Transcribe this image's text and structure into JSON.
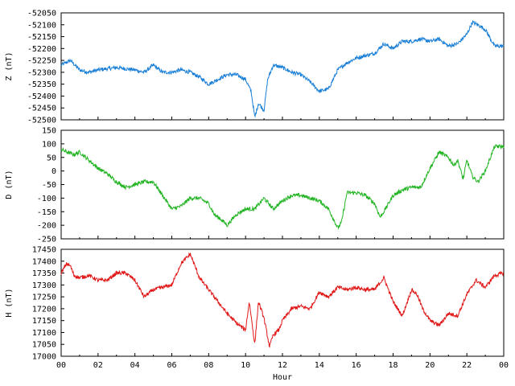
{
  "chart_data": [
    {
      "type": "line",
      "ylabel": "Z (nT)",
      "ylim": [
        -52500,
        -52050
      ],
      "yticks": [
        -52050,
        -52100,
        -52150,
        -52200,
        -52250,
        -52300,
        -52350,
        -52400,
        -52450,
        -52500
      ],
      "color": "#1a7fd6",
      "x": [
        0,
        0.5,
        1,
        1.5,
        2,
        2.5,
        3,
        3.5,
        4,
        4.5,
        5,
        5.5,
        6,
        6.5,
        7,
        7.5,
        8,
        8.5,
        9,
        9.5,
        10,
        10.3,
        10.5,
        10.7,
        11,
        11.2,
        11.5,
        12,
        12.5,
        13,
        13.5,
        14,
        14.5,
        15,
        15.5,
        16,
        16.5,
        17,
        17.5,
        18,
        18.5,
        19,
        19.5,
        20,
        20.5,
        21,
        21.5,
        22,
        22.3,
        22.6,
        23,
        23.5,
        24
      ],
      "y": [
        -52270,
        -52250,
        -52290,
        -52300,
        -52290,
        -52285,
        -52280,
        -52285,
        -52290,
        -52300,
        -52270,
        -52300,
        -52300,
        -52290,
        -52300,
        -52320,
        -52350,
        -52330,
        -52310,
        -52310,
        -52330,
        -52380,
        -52490,
        -52430,
        -52460,
        -52330,
        -52270,
        -52280,
        -52300,
        -52310,
        -52340,
        -52380,
        -52370,
        -52290,
        -52260,
        -52240,
        -52230,
        -52220,
        -52180,
        -52200,
        -52170,
        -52170,
        -52160,
        -52170,
        -52160,
        -52190,
        -52180,
        -52140,
        -52090,
        -52100,
        -52120,
        -52190,
        -52190
      ]
    },
    {
      "type": "line",
      "ylabel": "D (nT)",
      "ylim": [
        -250,
        150
      ],
      "yticks": [
        150,
        100,
        50,
        0,
        -50,
        -100,
        -150,
        -200,
        -250
      ],
      "color": "#22b422",
      "x": [
        0,
        0.3,
        0.7,
        1,
        1.5,
        2,
        2.5,
        3,
        3.5,
        4,
        4.5,
        5,
        5.5,
        6,
        6.5,
        7,
        7.5,
        8,
        8.3,
        8.7,
        9,
        9.5,
        10,
        10.5,
        11,
        11.5,
        12,
        12.5,
        13,
        13.5,
        14,
        14.5,
        15,
        15.2,
        15.5,
        16,
        16.5,
        17,
        17.3,
        17.5,
        18,
        18.5,
        19,
        19.5,
        20,
        20.5,
        21,
        21.3,
        21.5,
        21.8,
        22,
        22.3,
        22.6,
        23,
        23.5,
        24
      ],
      "y": [
        80,
        70,
        60,
        70,
        40,
        10,
        -10,
        -40,
        -60,
        -50,
        -40,
        -40,
        -90,
        -140,
        -130,
        -100,
        -100,
        -120,
        -160,
        -180,
        -200,
        -160,
        -140,
        -140,
        -100,
        -140,
        -110,
        -90,
        -90,
        -100,
        -110,
        -140,
        -210,
        -190,
        -80,
        -80,
        -90,
        -120,
        -170,
        -150,
        -90,
        -70,
        -60,
        -60,
        10,
        70,
        50,
        20,
        40,
        -30,
        40,
        -20,
        -40,
        0,
        90,
        90
      ]
    },
    {
      "type": "line",
      "ylabel": "H (nT)",
      "ylim": [
        17000,
        17450
      ],
      "yticks": [
        17450,
        17400,
        17350,
        17300,
        17250,
        17200,
        17150,
        17100,
        17050,
        17000
      ],
      "color": "#e01818",
      "xlabel": "Hour",
      "xlim": [
        0,
        24
      ],
      "xticks": [
        "00",
        "02",
        "04",
        "06",
        "08",
        "10",
        "12",
        "14",
        "16",
        "18",
        "20",
        "22",
        "00"
      ],
      "x": [
        0,
        0.3,
        0.5,
        0.7,
        1,
        1.5,
        2,
        2.5,
        3,
        3.5,
        4,
        4.5,
        5,
        5.5,
        6,
        6.5,
        7,
        7.5,
        8,
        8.5,
        9,
        9.5,
        10,
        10.2,
        10.5,
        10.7,
        11,
        11.3,
        11.5,
        11.8,
        12,
        12.5,
        13,
        13.5,
        14,
        14.5,
        15,
        15.5,
        16,
        16.5,
        17,
        17.5,
        18,
        18.5,
        19,
        19.3,
        19.6,
        20,
        20.5,
        21,
        21.5,
        22,
        22.5,
        23,
        23.5,
        24
      ],
      "y": [
        17350,
        17390,
        17380,
        17340,
        17330,
        17340,
        17320,
        17320,
        17350,
        17350,
        17320,
        17250,
        17280,
        17290,
        17300,
        17390,
        17430,
        17330,
        17280,
        17230,
        17180,
        17140,
        17110,
        17230,
        17050,
        17230,
        17160,
        17040,
        17090,
        17110,
        17150,
        17200,
        17210,
        17200,
        17270,
        17250,
        17290,
        17280,
        17290,
        17280,
        17280,
        17330,
        17230,
        17170,
        17280,
        17260,
        17200,
        17150,
        17130,
        17180,
        17170,
        17260,
        17320,
        17290,
        17340,
        17350
      ]
    }
  ]
}
